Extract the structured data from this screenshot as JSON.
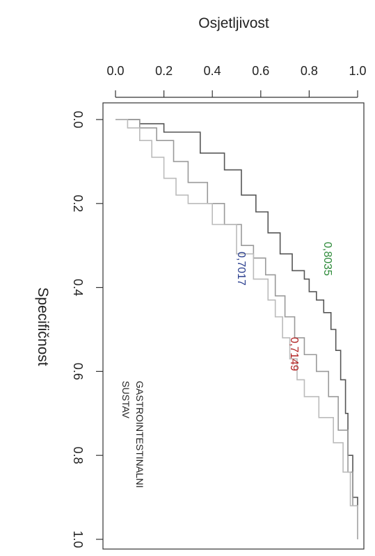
{
  "chart_data": {
    "type": "line",
    "title": "",
    "xlabel": "Osjetljivost",
    "ylabel": "Specifičnost",
    "xlim": [
      0,
      1
    ],
    "ylim": [
      0,
      1
    ],
    "y_reversed": true,
    "x_ticks": [
      "0.0",
      "0.2",
      "0.4",
      "0.6",
      "0.8",
      "1.0"
    ],
    "y_ticks": [
      "0.0",
      "0.2",
      "0.4",
      "0.6",
      "0.8",
      "1.0"
    ],
    "grid": false,
    "panel_label": [
      "GASTROINTESTINALNI",
      "SUSTAV"
    ],
    "series": [
      {
        "color": "#555555",
        "annotation": "0,8035",
        "annotation_color": "#2e8b3a",
        "x": [
          0.0,
          0.1,
          0.2,
          0.35,
          0.45,
          0.52,
          0.58,
          0.63,
          0.68,
          0.73,
          0.78,
          0.8,
          0.83,
          0.86,
          0.89,
          0.91,
          0.93,
          0.95,
          0.96,
          0.98,
          1.0
        ],
        "y": [
          0.0,
          0.01,
          0.03,
          0.08,
          0.12,
          0.18,
          0.22,
          0.27,
          0.32,
          0.36,
          0.38,
          0.41,
          0.43,
          0.46,
          0.5,
          0.55,
          0.62,
          0.7,
          0.8,
          0.9,
          1.0
        ]
      },
      {
        "color": "#999999",
        "annotation": "0,7149",
        "annotation_color": "#b22222",
        "x": [
          0.0,
          0.1,
          0.17,
          0.24,
          0.3,
          0.38,
          0.45,
          0.52,
          0.57,
          0.62,
          0.66,
          0.7,
          0.74,
          0.78,
          0.83,
          0.88,
          0.92,
          0.96,
          0.98,
          1.0
        ],
        "y": [
          0.0,
          0.02,
          0.05,
          0.1,
          0.15,
          0.2,
          0.25,
          0.3,
          0.33,
          0.37,
          0.42,
          0.47,
          0.52,
          0.56,
          0.6,
          0.66,
          0.74,
          0.84,
          0.92,
          1.0
        ]
      },
      {
        "color": "#bbbbbb",
        "annotation": "0,7017",
        "annotation_color": "#2b3f8f",
        "x": [
          0.0,
          0.05,
          0.1,
          0.15,
          0.2,
          0.25,
          0.3,
          0.4,
          0.5,
          0.57,
          0.63,
          0.66,
          0.69,
          0.72,
          0.75,
          0.78,
          0.84,
          0.9,
          0.94,
          0.97,
          1.0
        ],
        "y": [
          0.0,
          0.02,
          0.05,
          0.09,
          0.14,
          0.18,
          0.2,
          0.25,
          0.32,
          0.38,
          0.43,
          0.47,
          0.52,
          0.57,
          0.62,
          0.66,
          0.71,
          0.77,
          0.84,
          0.92,
          1.0
        ]
      }
    ]
  }
}
